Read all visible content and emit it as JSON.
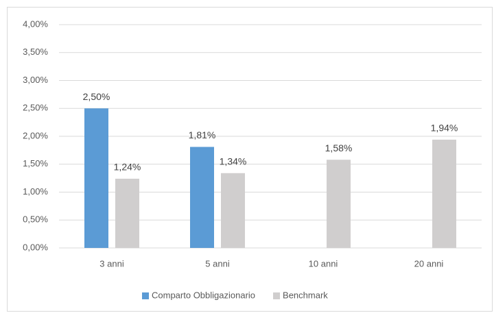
{
  "chart_data": {
    "type": "bar",
    "categories": [
      "3 anni",
      "5 anni",
      "10 anni",
      "20 anni"
    ],
    "series": [
      {
        "name": "Comparto Obbligazionario",
        "color": "#5b9bd5",
        "values": [
          2.5,
          1.81,
          null,
          null
        ],
        "value_labels": [
          "2,50%",
          "1,81%",
          null,
          null
        ]
      },
      {
        "name": "Benchmark",
        "color": "#d0cece",
        "values": [
          1.24,
          1.34,
          1.58,
          1.94
        ],
        "value_labels": [
          "1,24%",
          "1,34%",
          "1,58%",
          "1,94%"
        ]
      }
    ],
    "ylim": [
      0,
      4
    ],
    "yticks": [
      {
        "value": 0,
        "label": "0,00%"
      },
      {
        "value": 0.5,
        "label": "0,50%"
      },
      {
        "value": 1,
        "label": "1,00%"
      },
      {
        "value": 1.5,
        "label": "1,50%"
      },
      {
        "value": 2,
        "label": "2,00%"
      },
      {
        "value": 2.5,
        "label": "2,50%"
      },
      {
        "value": 3,
        "label": "3,00%"
      },
      {
        "value": 3.5,
        "label": "3,50%"
      },
      {
        "value": 4,
        "label": "4,00%"
      }
    ],
    "grid": true,
    "legend": "bottom"
  }
}
